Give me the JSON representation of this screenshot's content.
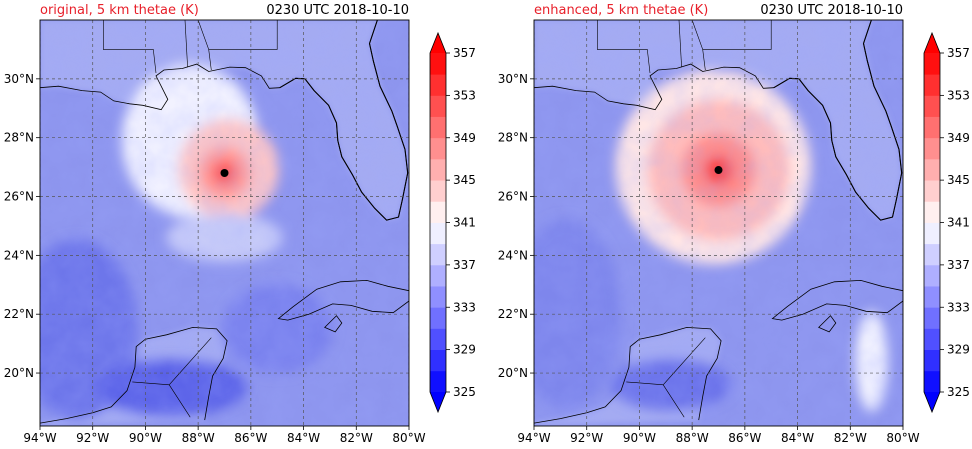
{
  "chart_data": [
    {
      "type": "heatmap",
      "title_left": "original, 5 km thetae (K)",
      "title_right": "0230 UTC 2018-10-10",
      "title_left_color": "#e8202a",
      "xlim": [
        -94,
        -80
      ],
      "ylim": [
        18.2,
        32
      ],
      "x_ticks": [
        -94,
        -92,
        -90,
        -88,
        -86,
        -84,
        -82,
        -80
      ],
      "x_tick_labels": [
        "94°W",
        "92°W",
        "90°W",
        "88°W",
        "86°W",
        "84°W",
        "82°W",
        "80°W"
      ],
      "y_ticks": [
        20,
        22,
        24,
        26,
        28,
        30
      ],
      "y_tick_labels": [
        "20°N",
        "22°N",
        "24°N",
        "26°N",
        "28°N",
        "30°N"
      ],
      "grid": true,
      "storm_center": {
        "lon": -87.0,
        "lat": 26.8
      },
      "colorbar": {
        "ticks": [
          325,
          329,
          333,
          337,
          341,
          345,
          349,
          353,
          357
        ],
        "levels": [
          325,
          327,
          329,
          331,
          333,
          335,
          337,
          339,
          341,
          343,
          345,
          347,
          349,
          351,
          353,
          355,
          357
        ],
        "extend": "both"
      }
    },
    {
      "type": "heatmap",
      "title_left": "enhanced, 5 km thetae (K)",
      "title_right": "0230 UTC 2018-10-10",
      "title_left_color": "#e8202a",
      "xlim": [
        -94,
        -80
      ],
      "ylim": [
        18.2,
        32
      ],
      "x_ticks": [
        -94,
        -92,
        -90,
        -88,
        -86,
        -84,
        -82,
        -80
      ],
      "x_tick_labels": [
        "94°W",
        "92°W",
        "90°W",
        "88°W",
        "86°W",
        "84°W",
        "82°W",
        "80°W"
      ],
      "y_ticks": [
        20,
        22,
        24,
        26,
        28,
        30
      ],
      "y_tick_labels": [
        "20°N",
        "22°N",
        "24°N",
        "26°N",
        "28°N",
        "30°N"
      ],
      "grid": true,
      "storm_center": {
        "lon": -87.0,
        "lat": 26.9
      },
      "colorbar": {
        "ticks": [
          325,
          329,
          333,
          337,
          341,
          345,
          349,
          353,
          357
        ],
        "levels": [
          325,
          327,
          329,
          331,
          333,
          335,
          337,
          339,
          341,
          343,
          345,
          347,
          349,
          351,
          353,
          355,
          357
        ],
        "extend": "both"
      }
    }
  ],
  "palette": {
    "cold_extreme": "#0000ff",
    "neutral": "#ffffff",
    "warm_extreme": "#ff0000",
    "gulf_base": "#8d95ee",
    "land_base": "#a4abf2",
    "coast_line": "#000000",
    "grid_line": "#555555",
    "storm_dot": "#000000"
  }
}
